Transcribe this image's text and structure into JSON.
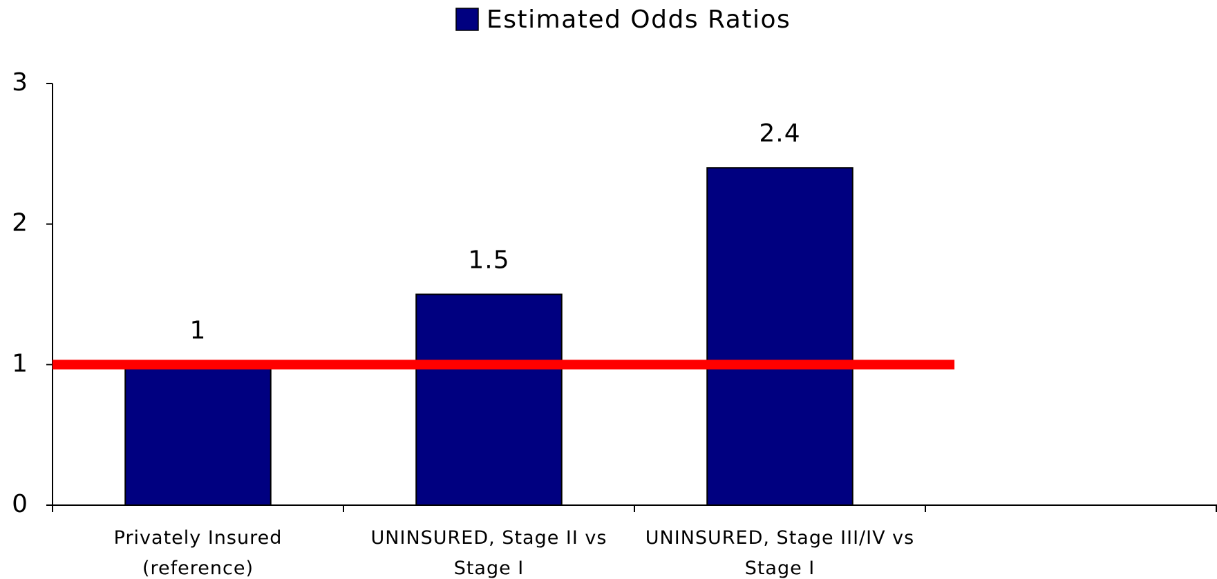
{
  "chart_data": {
    "type": "bar",
    "legend": "Estimated Odds Ratios",
    "categories": [
      "Privately Insured (reference)",
      "UNINSURED, Stage II vs Stage I",
      "UNINSURED, Stage III/IV vs Stage I",
      null
    ],
    "values": [
      1,
      1.5,
      2.4,
      null
    ],
    "color": "#000080",
    "ylim": [
      0,
      3
    ],
    "yticks": [
      0,
      1,
      2,
      3
    ],
    "reference_line": {
      "value": 1,
      "color": "#ff0000"
    }
  }
}
